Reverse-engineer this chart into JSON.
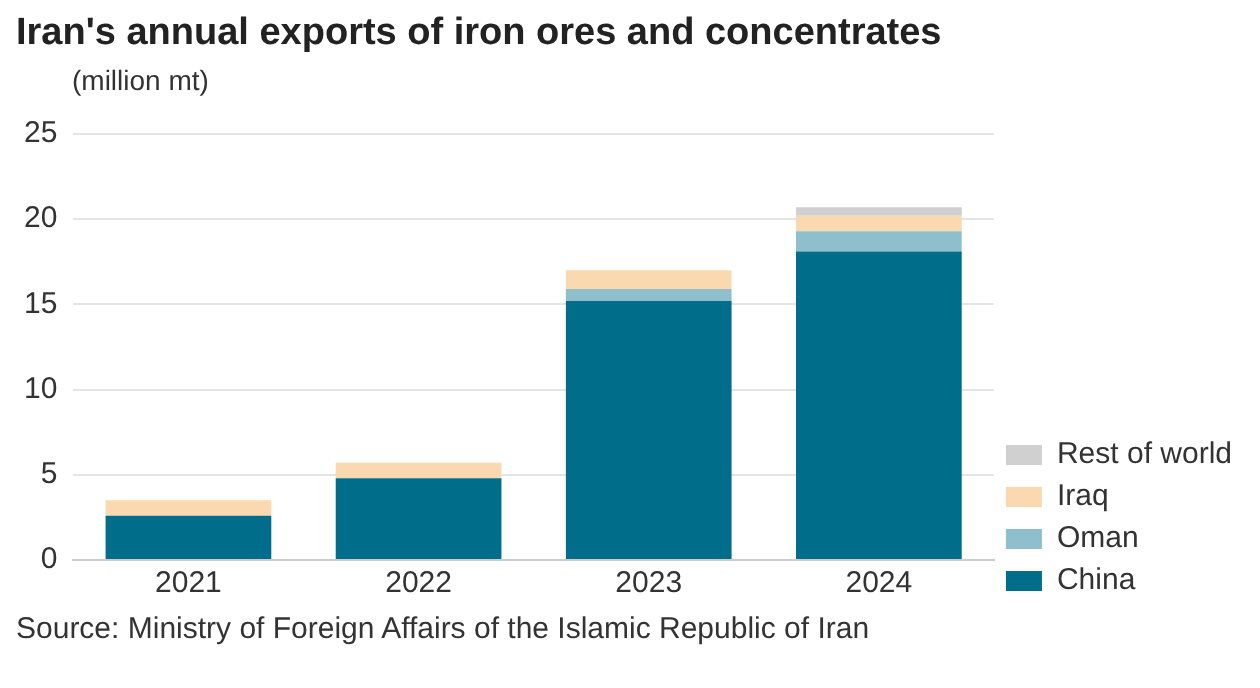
{
  "chart_data": {
    "type": "bar",
    "title": "Iran's annual exports of iron ores and concentrates",
    "ylabel": "(million mt)",
    "annotations": [
      "Source: Ministry of Foreign Affairs of the Islamic Republic of Iran"
    ],
    "categories": [
      "2021",
      "2022",
      "2023",
      "2024"
    ],
    "stacked": true,
    "series": [
      {
        "name": "China",
        "color": "#006d8a",
        "values": [
          2.6,
          4.8,
          15.2,
          18.1
        ]
      },
      {
        "name": "Oman",
        "color": "#8fbfcc",
        "values": [
          0,
          0,
          0.7,
          1.2
        ]
      },
      {
        "name": "Iraq",
        "color": "#fbd9b0",
        "values": [
          0.9,
          0.9,
          1.1,
          0.9
        ]
      },
      {
        "name": "Rest of world",
        "color": "#d0d0d0",
        "values": [
          0,
          0,
          null,
          0.5
        ]
      }
    ],
    "ylim": [
      0,
      25
    ],
    "yticks": [
      0,
      5,
      10,
      15,
      20,
      25
    ],
    "grid": "y",
    "legend": "bottom right"
  }
}
